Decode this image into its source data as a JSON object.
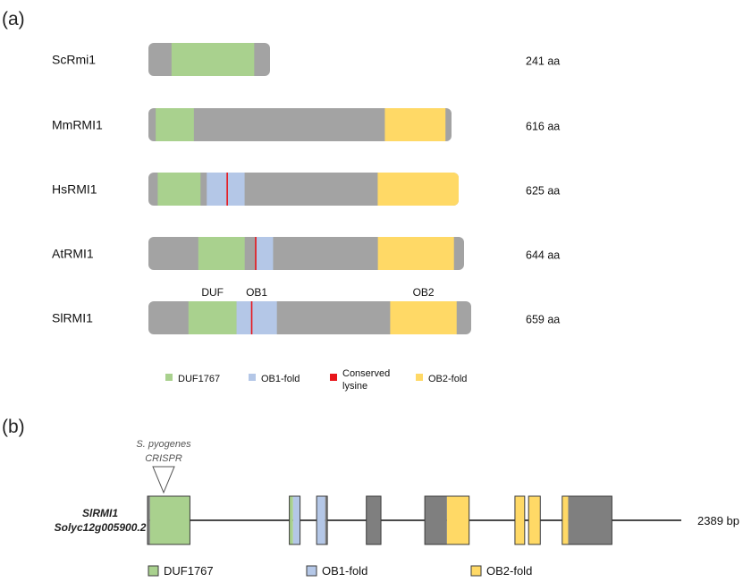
{
  "colors": {
    "backbone": "#a3a3a3",
    "duf": "#a9d18e",
    "ob1": "#b4c7e7",
    "lysine": "#e8161b",
    "ob2": "#ffd966",
    "exon": "#7f7f7f",
    "intron_line": "#4a4a4a"
  },
  "panel_a": {
    "label": "(a)",
    "proteins": [
      {
        "name": "ScRmi1",
        "length_label": "241 aa",
        "domains": [
          {
            "type": "duf",
            "from": 0.19,
            "to": 0.87
          }
        ]
      },
      {
        "name": "MmRMI1",
        "length_label": "616 aa",
        "domains": [
          {
            "type": "duf",
            "from": 0.024,
            "to": 0.15
          },
          {
            "type": "ob2",
            "from": 0.78,
            "to": 0.98
          }
        ]
      },
      {
        "name": "HsRMI1",
        "length_label": "625 aa",
        "domains": [
          {
            "type": "duf",
            "from": 0.03,
            "to": 0.168
          },
          {
            "type": "ob1",
            "from": 0.188,
            "to": 0.31
          },
          {
            "type": "ob2",
            "from": 0.739,
            "to": 1.0
          }
        ],
        "lysine": 0.254
      },
      {
        "name": "AtRMI1",
        "length_label": "644 aa",
        "domains": [
          {
            "type": "duf",
            "from": 0.158,
            "to": 0.305
          },
          {
            "type": "ob1",
            "from": 0.342,
            "to": 0.395
          },
          {
            "type": "ob2",
            "from": 0.727,
            "to": 0.968
          }
        ],
        "lysine": 0.34
      },
      {
        "name": "SlRMI1",
        "length_label": "659 aa",
        "domains": [
          {
            "type": "duf",
            "from": 0.124,
            "to": 0.273
          },
          {
            "type": "ob1",
            "from": 0.273,
            "to": 0.398
          },
          {
            "type": "ob2",
            "from": 0.749,
            "to": 0.955
          }
        ],
        "lysine": 0.32,
        "annotations": [
          "DUF",
          "OB1",
          "OB2"
        ]
      }
    ],
    "legend": [
      {
        "type": "duf",
        "label": "DUF1767"
      },
      {
        "type": "ob1",
        "label": "OB1-fold"
      },
      {
        "type": "lysine",
        "label_lines": [
          "Conserved",
          "lysine"
        ]
      },
      {
        "type": "ob2",
        "label": "OB2-fold"
      }
    ]
  },
  "panel_b": {
    "label": "(b)",
    "gene_name": "SlRMI1",
    "gene_id": "Solyc12g005900.2",
    "crispr_lines": [
      "S. pyogenes",
      "CRISPR"
    ],
    "length_label": "2389 bp",
    "exons": [
      {
        "from": 0.0,
        "to": 0.087,
        "segments": [
          {
            "type": "exon",
            "from": 0,
            "to": 0.06
          },
          {
            "type": "duf",
            "from": 0.06,
            "to": 1
          }
        ]
      },
      {
        "from": 0.291,
        "to": 0.313,
        "segments": [
          {
            "type": "duf",
            "from": 0,
            "to": 0.35
          },
          {
            "type": "ob1",
            "from": 0.35,
            "to": 1
          }
        ]
      },
      {
        "from": 0.347,
        "to": 0.369,
        "segments": [
          {
            "type": "ob1",
            "from": 0,
            "to": 0.8
          },
          {
            "type": "exon",
            "from": 0.8,
            "to": 1
          }
        ]
      },
      {
        "from": 0.449,
        "to": 0.479,
        "segments": [
          {
            "type": "exon",
            "from": 0,
            "to": 1
          }
        ]
      },
      {
        "from": 0.569,
        "to": 0.66,
        "segments": [
          {
            "type": "exon",
            "from": 0,
            "to": 0.5
          },
          {
            "type": "ob2",
            "from": 0.5,
            "to": 1
          }
        ]
      },
      {
        "from": 0.754,
        "to": 0.774,
        "segments": [
          {
            "type": "ob2",
            "from": 0,
            "to": 1
          }
        ]
      },
      {
        "from": 0.782,
        "to": 0.806,
        "segments": [
          {
            "type": "ob2",
            "from": 0,
            "to": 1
          }
        ]
      },
      {
        "from": 0.851,
        "to": 0.953,
        "segments": [
          {
            "type": "ob2",
            "from": 0,
            "to": 0.12
          },
          {
            "type": "exon",
            "from": 0.12,
            "to": 1
          }
        ]
      }
    ],
    "legend": [
      {
        "type": "duf",
        "label": "DUF1767"
      },
      {
        "type": "ob1",
        "label": "OB1-fold"
      },
      {
        "type": "ob2",
        "label": "OB2-fold"
      }
    ]
  }
}
